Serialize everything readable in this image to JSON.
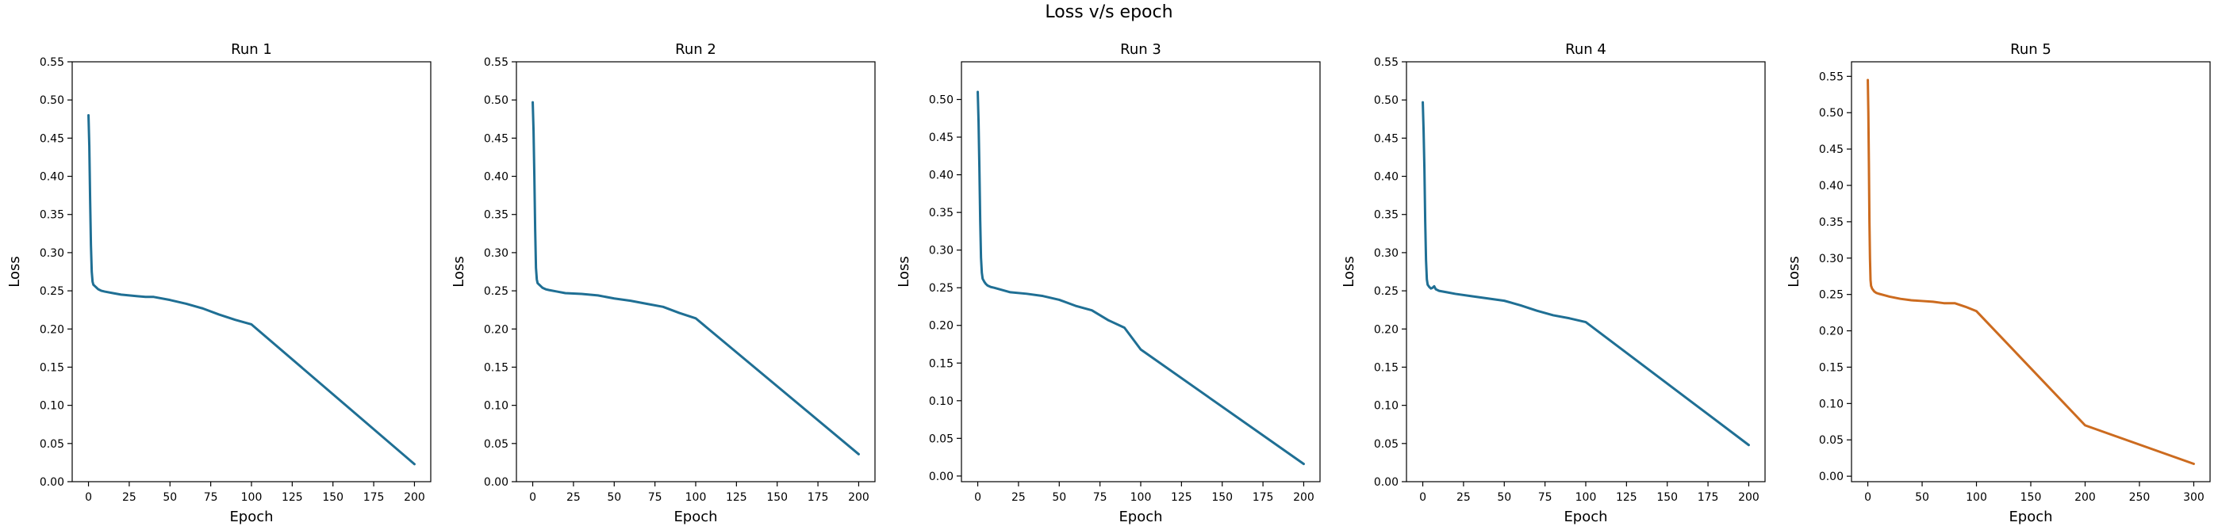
{
  "figure_title": "Loss v/s epoch",
  "chart_data": [
    {
      "type": "line",
      "title": "Run 1",
      "xlabel": "Epoch",
      "ylabel": "Loss",
      "xlim": [
        -10,
        210
      ],
      "ylim": [
        0.0,
        0.55
      ],
      "xticks": [
        0,
        25,
        50,
        75,
        100,
        125,
        150,
        175,
        200
      ],
      "yticks": [
        0.0,
        0.05,
        0.1,
        0.15,
        0.2,
        0.25,
        0.3,
        0.35,
        0.4,
        0.45,
        0.5,
        0.55
      ],
      "grid": false,
      "color": "#1f6f94",
      "series": [
        {
          "x": [
            0,
            0.5,
            1,
            1.5,
            2,
            2.5,
            3,
            4,
            5,
            6,
            8,
            10,
            15,
            20,
            25,
            30,
            35,
            40,
            50,
            60,
            70,
            80,
            90,
            100,
            200
          ],
          "y": [
            0.48,
            0.44,
            0.37,
            0.31,
            0.275,
            0.262,
            0.258,
            0.256,
            0.254,
            0.252,
            0.25,
            0.249,
            0.247,
            0.245,
            0.244,
            0.243,
            0.242,
            0.242,
            0.238,
            0.233,
            0.227,
            0.219,
            0.212,
            0.206,
            0.023
          ]
        }
      ]
    },
    {
      "type": "line",
      "title": "Run 2",
      "xlabel": "Epoch",
      "ylabel": "Loss",
      "xlim": [
        -10,
        210
      ],
      "ylim": [
        0.0,
        0.55
      ],
      "xticks": [
        0,
        25,
        50,
        75,
        100,
        125,
        150,
        175,
        200
      ],
      "yticks": [
        0.0,
        0.05,
        0.1,
        0.15,
        0.2,
        0.25,
        0.3,
        0.35,
        0.4,
        0.45,
        0.5,
        0.55
      ],
      "grid": false,
      "color": "#1f6f94",
      "series": [
        {
          "x": [
            0,
            0.5,
            1,
            1.5,
            2,
            2.5,
            3,
            4,
            5,
            6,
            8,
            10,
            15,
            20,
            30,
            40,
            50,
            60,
            70,
            80,
            90,
            100,
            200
          ],
          "y": [
            0.497,
            0.46,
            0.4,
            0.33,
            0.28,
            0.265,
            0.26,
            0.258,
            0.256,
            0.254,
            0.252,
            0.251,
            0.249,
            0.247,
            0.246,
            0.244,
            0.24,
            0.237,
            0.233,
            0.229,
            0.221,
            0.214,
            0.036
          ]
        }
      ]
    },
    {
      "type": "line",
      "title": "Run 3",
      "xlabel": "Epoch",
      "ylabel": "Loss",
      "xlim": [
        -10,
        210
      ],
      "ylim": [
        -0.0075,
        0.55
      ],
      "xticks": [
        0,
        25,
        50,
        75,
        100,
        125,
        150,
        175,
        200
      ],
      "yticks": [
        0.0,
        0.05,
        0.1,
        0.15,
        0.2,
        0.25,
        0.3,
        0.35,
        0.4,
        0.45,
        0.5
      ],
      "grid": false,
      "color": "#1f6f94",
      "series": [
        {
          "x": [
            0,
            0.5,
            1,
            1.5,
            2,
            2.5,
            3,
            4,
            5,
            6,
            8,
            10,
            15,
            20,
            30,
            40,
            50,
            60,
            70,
            80,
            90,
            100,
            200
          ],
          "y": [
            0.51,
            0.47,
            0.41,
            0.34,
            0.29,
            0.27,
            0.262,
            0.258,
            0.255,
            0.253,
            0.251,
            0.25,
            0.247,
            0.244,
            0.242,
            0.239,
            0.234,
            0.226,
            0.22,
            0.207,
            0.197,
            0.168,
            0.016
          ]
        }
      ]
    },
    {
      "type": "line",
      "title": "Run 4",
      "xlabel": "Epoch",
      "ylabel": "Loss",
      "xlim": [
        -10,
        210
      ],
      "ylim": [
        0.0,
        0.55
      ],
      "xticks": [
        0,
        25,
        50,
        75,
        100,
        125,
        150,
        175,
        200
      ],
      "yticks": [
        0.0,
        0.05,
        0.1,
        0.15,
        0.2,
        0.25,
        0.3,
        0.35,
        0.4,
        0.45,
        0.5,
        0.55
      ],
      "grid": false,
      "color": "#1f6f94",
      "series": [
        {
          "x": [
            0,
            0.5,
            1,
            1.5,
            2,
            2.5,
            3,
            4,
            5,
            6,
            7,
            8,
            10,
            15,
            20,
            30,
            40,
            50,
            60,
            70,
            80,
            90,
            100,
            200
          ],
          "y": [
            0.497,
            0.46,
            0.41,
            0.34,
            0.29,
            0.265,
            0.258,
            0.255,
            0.253,
            0.254,
            0.256,
            0.252,
            0.25,
            0.248,
            0.246,
            0.243,
            0.24,
            0.237,
            0.231,
            0.224,
            0.218,
            0.214,
            0.209,
            0.048
          ]
        }
      ]
    },
    {
      "type": "line",
      "title": "Run 5",
      "xlabel": "Epoch",
      "ylabel": "Loss",
      "xlim": [
        -15,
        315
      ],
      "ylim": [
        -0.0075,
        0.57
      ],
      "xticks": [
        0,
        50,
        100,
        150,
        200,
        250,
        300
      ],
      "yticks": [
        0.0,
        0.05,
        0.1,
        0.15,
        0.2,
        0.25,
        0.3,
        0.35,
        0.4,
        0.45,
        0.5,
        0.55
      ],
      "grid": false,
      "color": "#cc6b1f",
      "series": [
        {
          "x": [
            0,
            0.5,
            1,
            1.5,
            2,
            2.5,
            3,
            4,
            5,
            6,
            8,
            10,
            15,
            20,
            30,
            40,
            50,
            60,
            70,
            80,
            90,
            100,
            200,
            300
          ],
          "y": [
            0.545,
            0.5,
            0.43,
            0.35,
            0.3,
            0.27,
            0.262,
            0.258,
            0.256,
            0.254,
            0.252,
            0.251,
            0.249,
            0.247,
            0.244,
            0.242,
            0.241,
            0.24,
            0.238,
            0.238,
            0.233,
            0.227,
            0.07,
            0.017
          ]
        }
      ]
    }
  ]
}
